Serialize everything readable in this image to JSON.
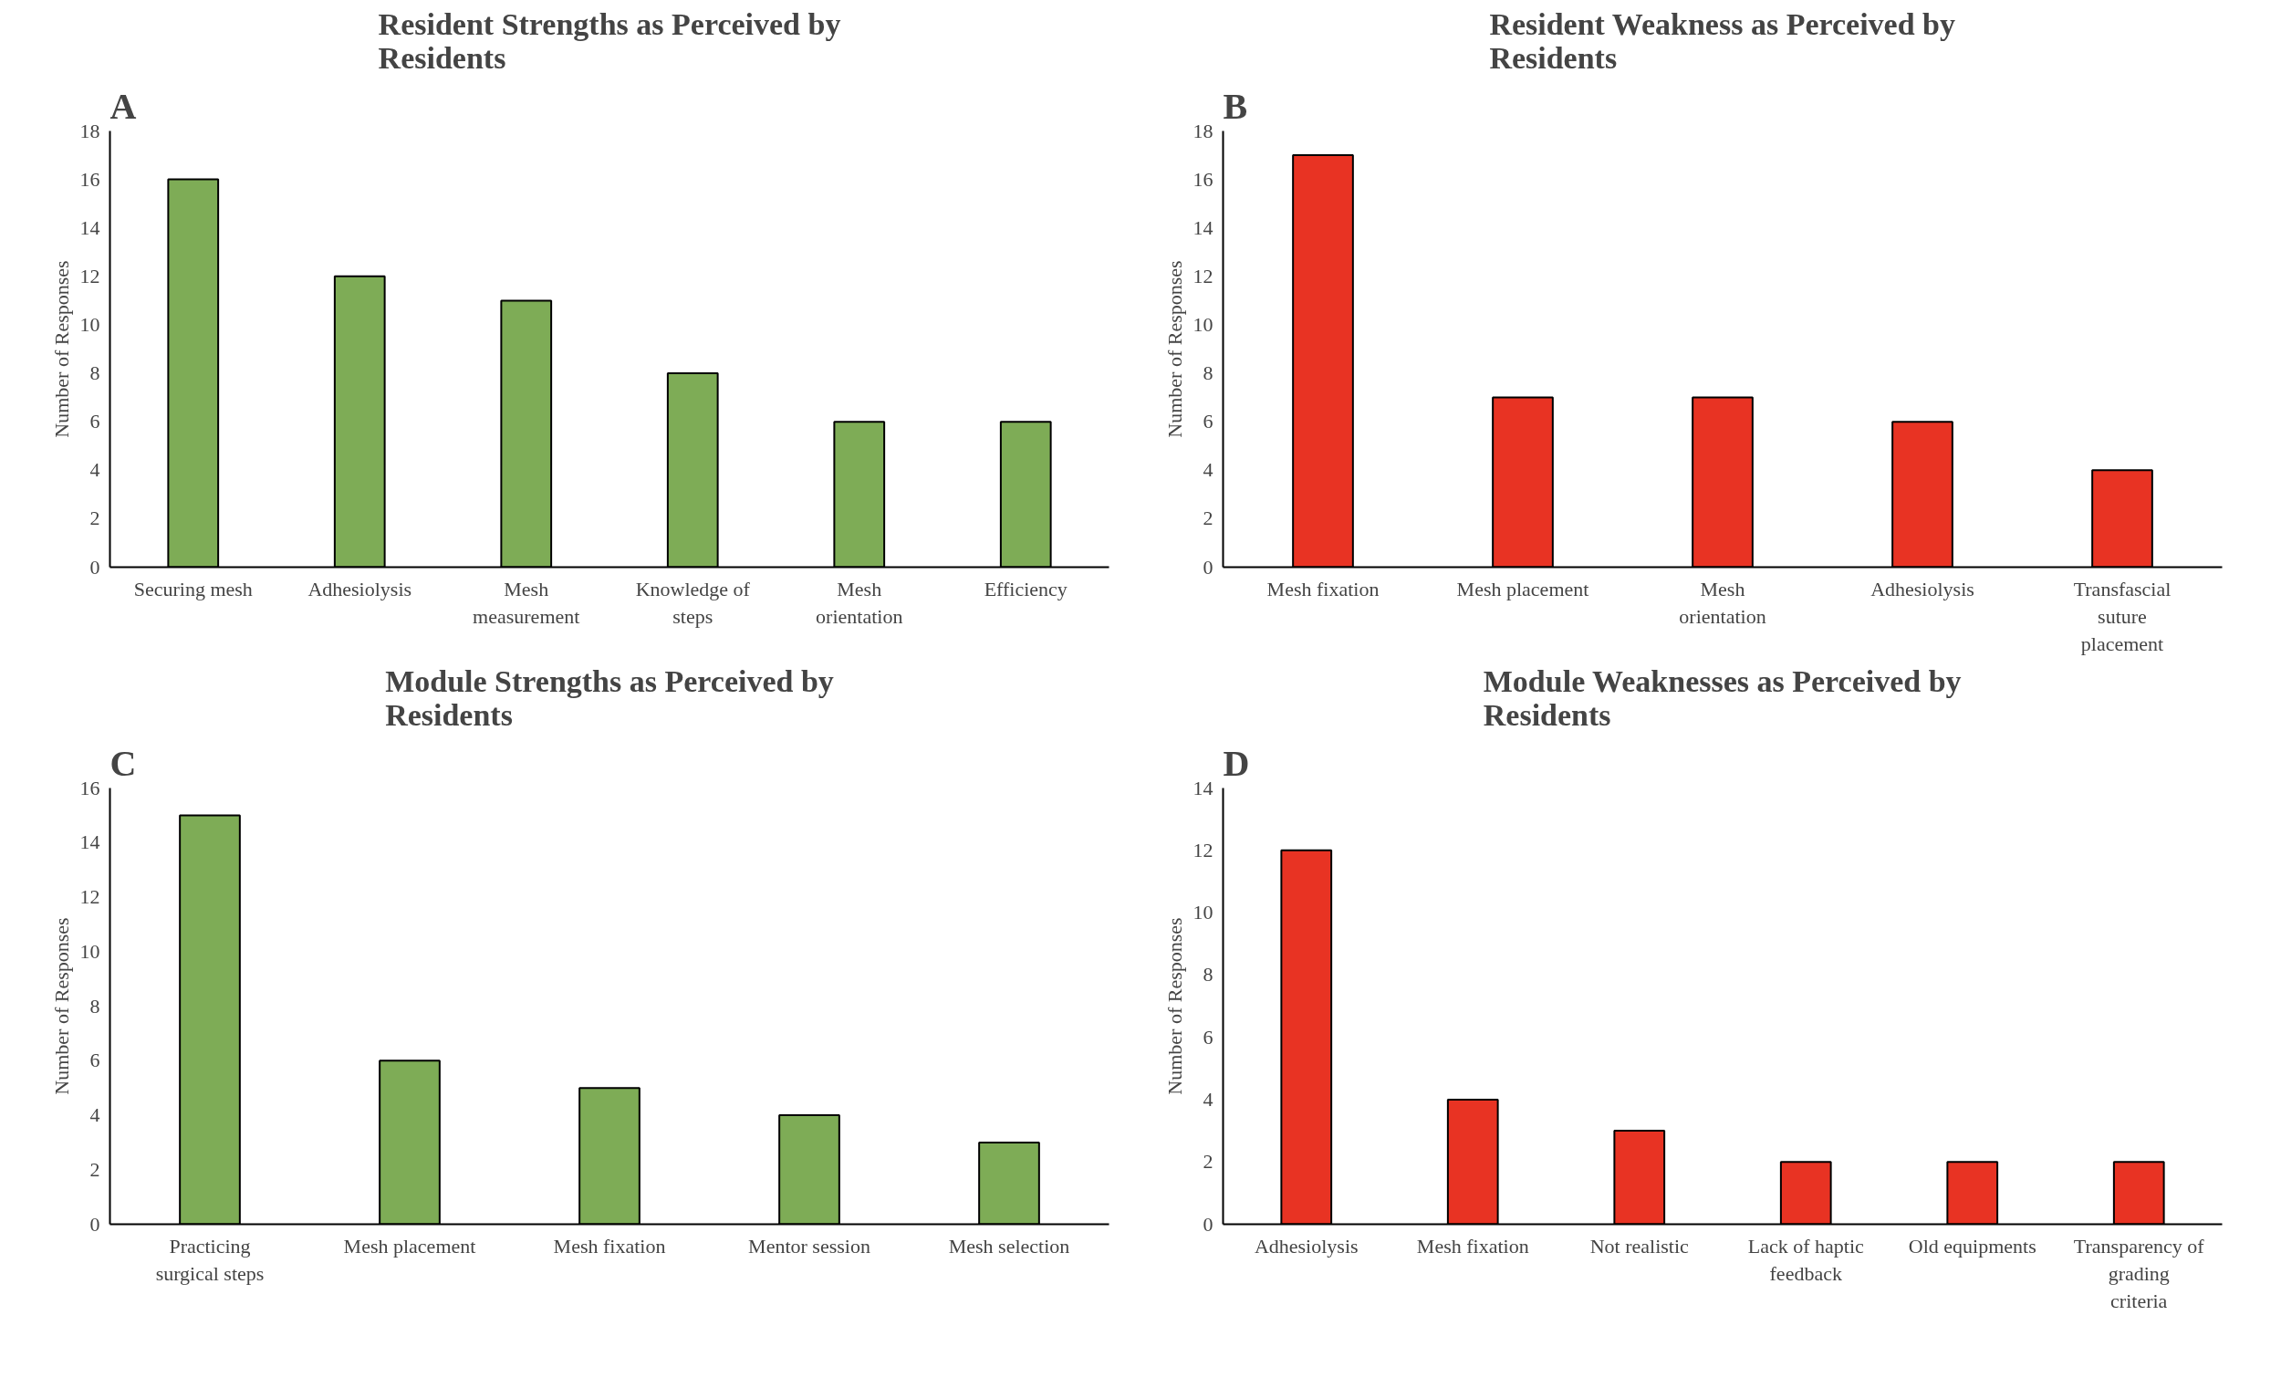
{
  "chart_data": [
    {
      "type": "bar",
      "title": "Resident Strengths as Perceived by Residents",
      "ylabel": "Number of Responses",
      "annotations": [
        "A"
      ],
      "categories": [
        "Securing mesh",
        "Adhesiolysis",
        "Mesh measurement",
        "Knowledge of steps",
        "Mesh orientation",
        "Efficiency"
      ],
      "values": [
        16,
        12,
        11,
        8,
        6,
        6
      ],
      "color": "#7eac56",
      "ylim": [
        0,
        18
      ],
      "yticks": [
        0,
        2,
        4,
        6,
        8,
        10,
        12,
        14,
        16,
        18
      ],
      "grid": false
    },
    {
      "type": "bar",
      "title": "Resident Weakness as Perceived by Residents",
      "ylabel": "Number of Responses",
      "annotations": [
        "B"
      ],
      "categories": [
        "Mesh fixation",
        "Mesh placement",
        "Mesh orientation",
        "Adhesiolysis",
        "Transfascial suture placement"
      ],
      "values": [
        17,
        7,
        7,
        6,
        4
      ],
      "color": "#e83323",
      "ylim": [
        0,
        18
      ],
      "yticks": [
        0,
        2,
        4,
        6,
        8,
        10,
        12,
        14,
        16,
        18
      ],
      "grid": false
    },
    {
      "type": "bar",
      "title": "Module Strengths as Perceived by Residents",
      "ylabel": "Number of Responses",
      "annotations": [
        "C"
      ],
      "categories": [
        "Practicing surgical steps",
        "Mesh placement",
        "Mesh fixation",
        "Mentor session",
        "Mesh selection"
      ],
      "values": [
        15,
        6,
        5,
        4,
        3
      ],
      "color": "#7eac56",
      "ylim": [
        0,
        16
      ],
      "yticks": [
        0,
        2,
        4,
        6,
        8,
        10,
        12,
        14,
        16
      ],
      "grid": false
    },
    {
      "type": "bar",
      "title": "Module Weaknesses as Perceived by Residents",
      "ylabel": "Number of Responses",
      "annotations": [
        "D"
      ],
      "categories": [
        "Adhesiolysis",
        "Mesh fixation",
        "Not realistic",
        "Lack of haptic feedback",
        "Old equipments",
        "Transparency of grading criteria"
      ],
      "values": [
        12,
        4,
        3,
        2,
        2,
        2
      ],
      "color": "#e83323",
      "ylim": [
        0,
        14
      ],
      "yticks": [
        0,
        2,
        4,
        6,
        8,
        10,
        12,
        14
      ],
      "grid": false
    }
  ]
}
